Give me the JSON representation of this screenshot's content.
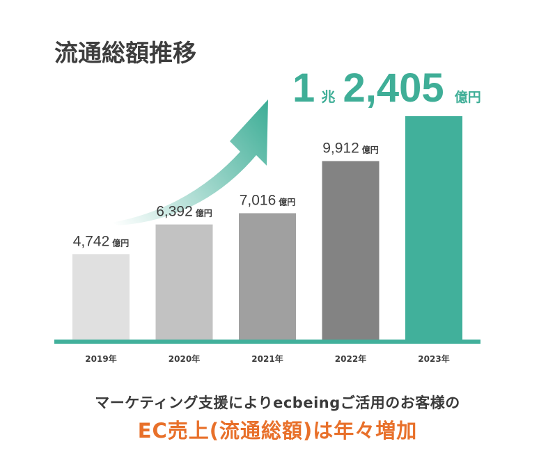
{
  "chart_data": {
    "type": "bar",
    "title": "流通総額推移",
    "categories": [
      "2019年",
      "2020年",
      "2021年",
      "2022年",
      "2023年"
    ],
    "values": [
      4742,
      6392,
      7016,
      9912,
      12405
    ],
    "value_labels": [
      "4,742",
      "6,392",
      "7,016",
      "9,912",
      ""
    ],
    "unit": "億円",
    "highlight": {
      "trillion_part": "1",
      "trillion_unit": "兆",
      "remainder": "2,405",
      "unit": "億円"
    },
    "ylim": [
      0,
      13000
    ],
    "grid": false,
    "colors": [
      "#e0e0e0",
      "#c2c2c2",
      "#a0a0a0",
      "#838383",
      "#41b09b"
    ],
    "baseline_color": "#41b09b",
    "arrow_color": "#3fae97"
  },
  "caption": {
    "line1": "マーケティング支援によりecbeingご活用のお客様の",
    "line2": "EC売上(流通総額)は年々増加"
  }
}
